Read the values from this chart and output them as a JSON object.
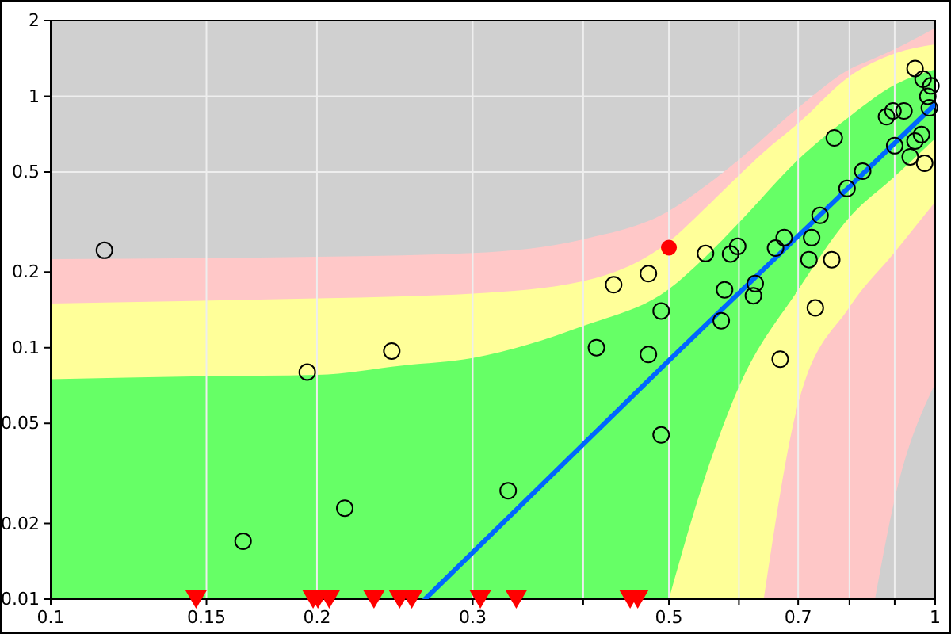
{
  "chart_data": {
    "type": "scatter",
    "xlim": [
      0.1,
      1
    ],
    "ylim": [
      0.01,
      2
    ],
    "log": "xy",
    "grid": true,
    "xticks": [
      0.1,
      0.15,
      0.2,
      0.3,
      {
        "value": 0.4,
        "label": null
      },
      0.5,
      {
        "value": 0.6,
        "label": null
      },
      0.7,
      {
        "value": 0.8,
        "label": null
      },
      {
        "value": 0.9,
        "label": null
      },
      1
    ],
    "yticks": [
      0.01,
      0.02,
      0.05,
      0.1,
      0.2,
      0.5,
      1,
      2
    ],
    "series": [
      {
        "type": "area",
        "color": "#ffc8c8",
        "x": [
          0.1,
          0.2,
          0.3,
          0.4,
          0.5,
          0.55,
          0.6,
          0.7,
          0.8,
          0.855,
          0.9,
          1
        ],
        "values": [
          0.225,
          0.23,
          0.238,
          0.27,
          0.35,
          0.44,
          0.56,
          0.9,
          1.28,
          1.42,
          1.54,
          1.87
        ]
      },
      {
        "type": "area",
        "color": "#ffff99",
        "x": [
          0.1,
          0.2,
          0.25,
          0.3,
          0.4,
          0.5,
          0.55,
          0.6,
          0.64,
          0.7,
          0.8,
          0.9,
          1
        ],
        "values": [
          0.15,
          0.157,
          0.16,
          0.164,
          0.184,
          0.264,
          0.36,
          0.485,
          0.6,
          0.78,
          1.2,
          1.48,
          1.61
        ]
      },
      {
        "type": "area",
        "color": "#66ff66",
        "x": [
          0.1,
          0.15,
          0.2,
          0.25,
          0.3,
          0.4,
          0.5,
          0.55,
          0.6,
          0.7,
          0.8,
          0.9,
          1
        ],
        "values": [
          0.075,
          0.077,
          0.078,
          0.085,
          0.091,
          0.122,
          0.171,
          0.23,
          0.314,
          0.56,
          0.83,
          1.11,
          1.28
        ]
      },
      {
        "type": "area",
        "color": "#feff98",
        "x": [
          0.5,
          0.55,
          0.6,
          0.7,
          0.8,
          0.9,
          1
        ],
        "values": [
          0.01,
          0.031,
          0.07,
          0.17,
          0.33,
          0.48,
          0.68
        ]
      },
      {
        "type": "area",
        "color": "#fec7c7",
        "x": [
          0.64,
          0.7,
          0.8,
          0.9,
          1
        ],
        "values": [
          0.01,
          0.06,
          0.145,
          0.24,
          0.38
        ]
      },
      {
        "type": "area",
        "color": "#cfcfcf",
        "x": [
          0.855,
          0.9,
          1
        ],
        "values": [
          0.01,
          0.025,
          0.072
        ]
      },
      {
        "type": "line",
        "color": "#0066ff",
        "x": [
          0.265,
          0.5,
          1
        ],
        "values": [
          0.01,
          0.089,
          0.93
        ]
      },
      {
        "marker": "circle",
        "color": "#000000",
        "x": [
          0.115,
          0.165,
          0.195,
          0.215,
          0.243,
          0.329,
          0.414,
          0.433,
          0.474,
          0.474,
          0.49,
          0.49,
          0.55,
          0.573,
          0.578,
          0.587,
          0.598,
          0.626,
          0.623,
          0.66,
          0.675,
          0.668,
          0.725,
          0.72,
          0.741,
          0.764,
          0.732,
          0.769,
          0.795,
          0.828,
          0.881,
          0.896,
          0.922,
          0.9,
          0.937,
          0.949,
          0.969,
          0.989,
          0.981,
          0.985,
          0.949,
          0.965,
          0.973
        ],
        "values": [
          0.244,
          0.017,
          0.08,
          0.023,
          0.097,
          0.027,
          0.1,
          0.178,
          0.197,
          0.094,
          0.14,
          0.045,
          0.237,
          0.128,
          0.17,
          0.236,
          0.253,
          0.18,
          0.161,
          0.249,
          0.274,
          0.09,
          0.274,
          0.224,
          0.336,
          0.224,
          0.144,
          0.683,
          0.43,
          0.504,
          0.829,
          0.874,
          0.874,
          0.636,
          0.574,
          1.29,
          1.17,
          1.1,
          1.0,
          0.9,
          0.664,
          0.704,
          0.542
        ]
      },
      {
        "marker": "circle",
        "color": "#ff0000",
        "x": [
          0.5
        ],
        "values": [
          0.25
        ]
      },
      {
        "marker": "triangle",
        "color": "#ff0000",
        "x": [
          0.146,
          0.198,
          0.2005,
          0.2065,
          0.232,
          0.248,
          0.256,
          0.306,
          0.336,
          0.452,
          0.461
        ],
        "values": [
          0.01,
          0.01,
          0.01,
          0.01,
          0.01,
          0.01,
          0.01,
          0.01,
          0.01,
          0.01,
          0.01
        ]
      }
    ]
  }
}
